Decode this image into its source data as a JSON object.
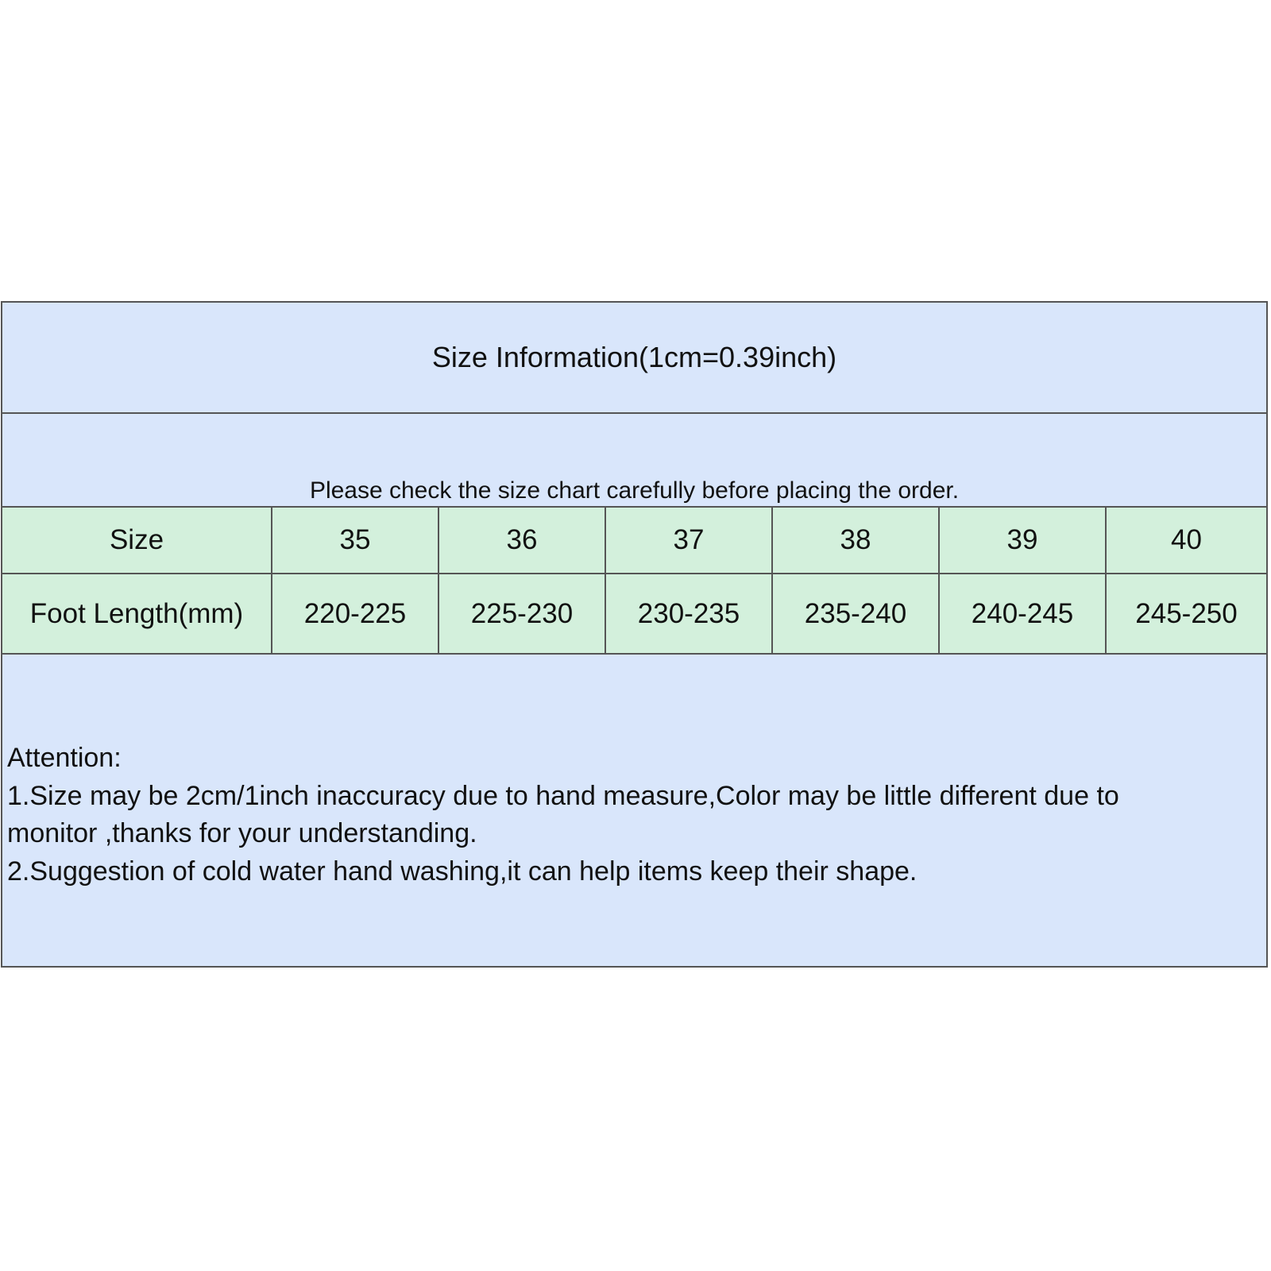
{
  "title": "Size Information(1cm=0.39inch)",
  "subtitle": "Please check the size chart carefully before placing the order.",
  "table": {
    "headers": [
      "Size",
      "35",
      "36",
      "37",
      "38",
      "39",
      "40"
    ],
    "rows": [
      [
        "Foot Length(mm)",
        "220-225",
        "225-230",
        "230-235",
        "235-240",
        "240-245",
        "245-250"
      ]
    ]
  },
  "attention": {
    "heading": "Attention:",
    "lines": [
      "1.Size may be 2cm/1inch inaccuracy due to hand measure,Color may be little different due to",
      "monitor ,thanks for your understanding.",
      "2.Suggestion of cold water hand washing,it can help items keep their shape."
    ]
  },
  "colors": {
    "header_bg": "#d9e6fb",
    "table_bg": "#d3f0dc",
    "border": "#555555"
  }
}
